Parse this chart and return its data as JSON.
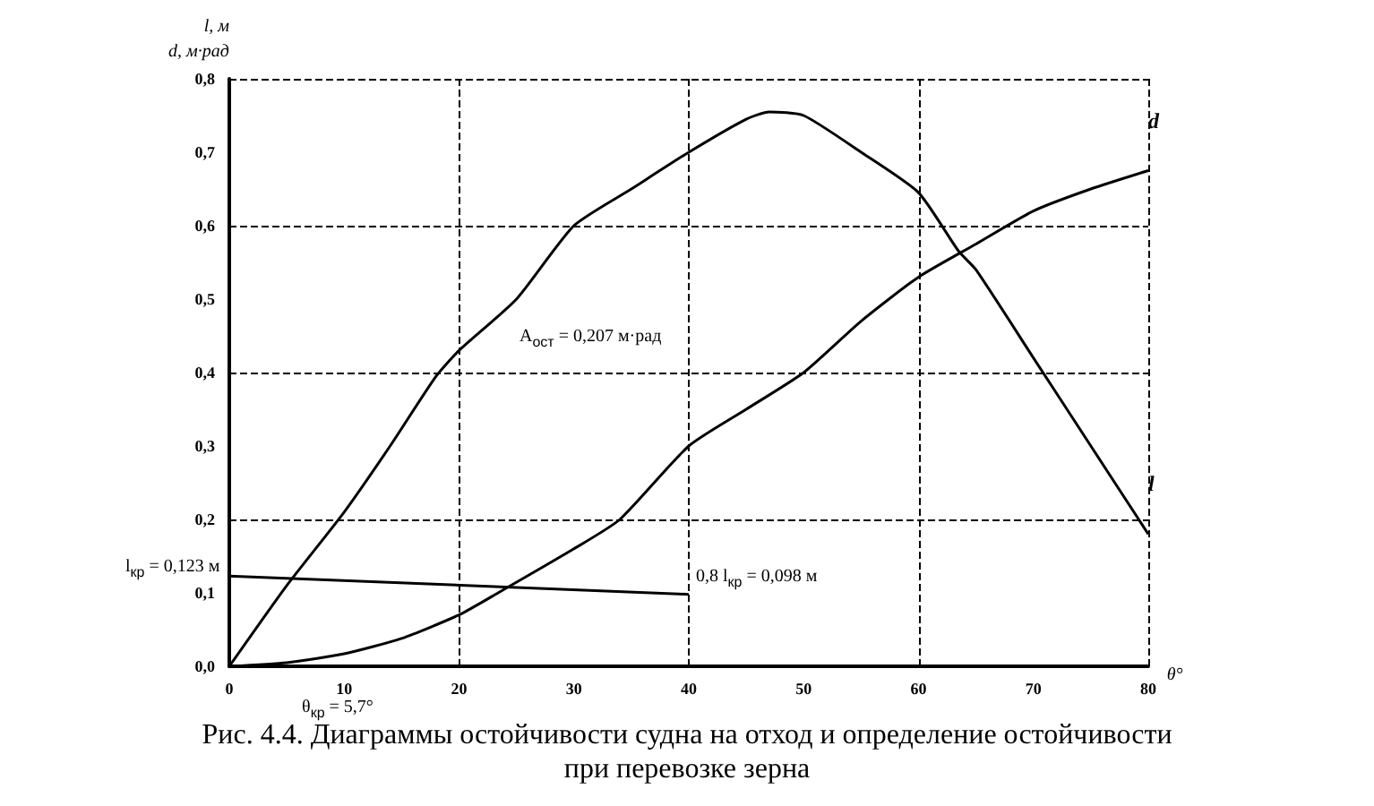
{
  "chart_data": {
    "type": "line",
    "title": "Рис. 4.4. Диаграммы остойчивости судна на отход и определение остойчивости\nпри перевозке зерна",
    "xlabel": "θ°",
    "ylabel": "l, м\nd, м·рад",
    "marker": "none",
    "grid": true,
    "xlim": [
      0,
      80
    ],
    "xticks": [
      0,
      10,
      20,
      30,
      40,
      50,
      60,
      70,
      80
    ],
    "ylim": [
      0,
      0.8
    ],
    "yticks": [
      {
        "value": 0,
        "label": "0,0"
      },
      {
        "value": 0.1,
        "label": "0,1"
      },
      {
        "value": 0.2,
        "label": "0,2"
      },
      {
        "value": 0.3,
        "label": "0,3"
      },
      {
        "value": 0.4,
        "label": "0,4"
      },
      {
        "value": 0.5,
        "label": "0,5"
      },
      {
        "value": 0.6,
        "label": "0,6"
      },
      {
        "value": 0.7,
        "label": "0,7"
      },
      {
        "value": 0.8,
        "label": "0,8"
      }
    ],
    "series": [
      {
        "name": "l",
        "color": "#000000",
        "x": [
          0,
          5,
          10,
          14,
          18,
          20,
          25,
          30,
          35,
          40,
          45,
          47,
          50,
          55,
          60,
          63.5,
          65,
          70,
          75,
          80
        ],
        "values": [
          0,
          0.11,
          0.21,
          0.3,
          0.395,
          0.43,
          0.5,
          0.6,
          0.65,
          0.7,
          0.745,
          0.755,
          0.75,
          0.7,
          0.645,
          0.565,
          0.54,
          0.42,
          0.3,
          0.18
        ]
      },
      {
        "name": "d",
        "color": "#000000",
        "x": [
          0,
          5,
          10,
          15,
          20,
          23.4,
          30,
          34,
          40,
          45,
          50,
          55,
          60,
          65,
          70,
          75,
          80
        ],
        "values": [
          0,
          0.005,
          0.017,
          0.038,
          0.07,
          0.1,
          0.16,
          0.2,
          0.3,
          0.35,
          0.4,
          0.47,
          0.53,
          0.575,
          0.62,
          0.65,
          0.675
        ]
      },
      {
        "color": "#000000",
        "x": [
          0,
          40
        ],
        "values": [
          0.123,
          0.098
        ]
      }
    ],
    "annotations": [
      "A$_{ост}$ = 0,207 м·рад",
      {
        "text": "l$_{кр}$ = 0,123 м",
        "x": 0,
        "y": 0.123
      },
      {
        "text": "0,8 l$_{кр}$ = 0,098 м",
        "x": 40,
        "y": 0.098
      },
      {
        "text": "θ$_{кр}$ = 5,7°",
        "x": 5.7,
        "y": 0
      }
    ]
  }
}
